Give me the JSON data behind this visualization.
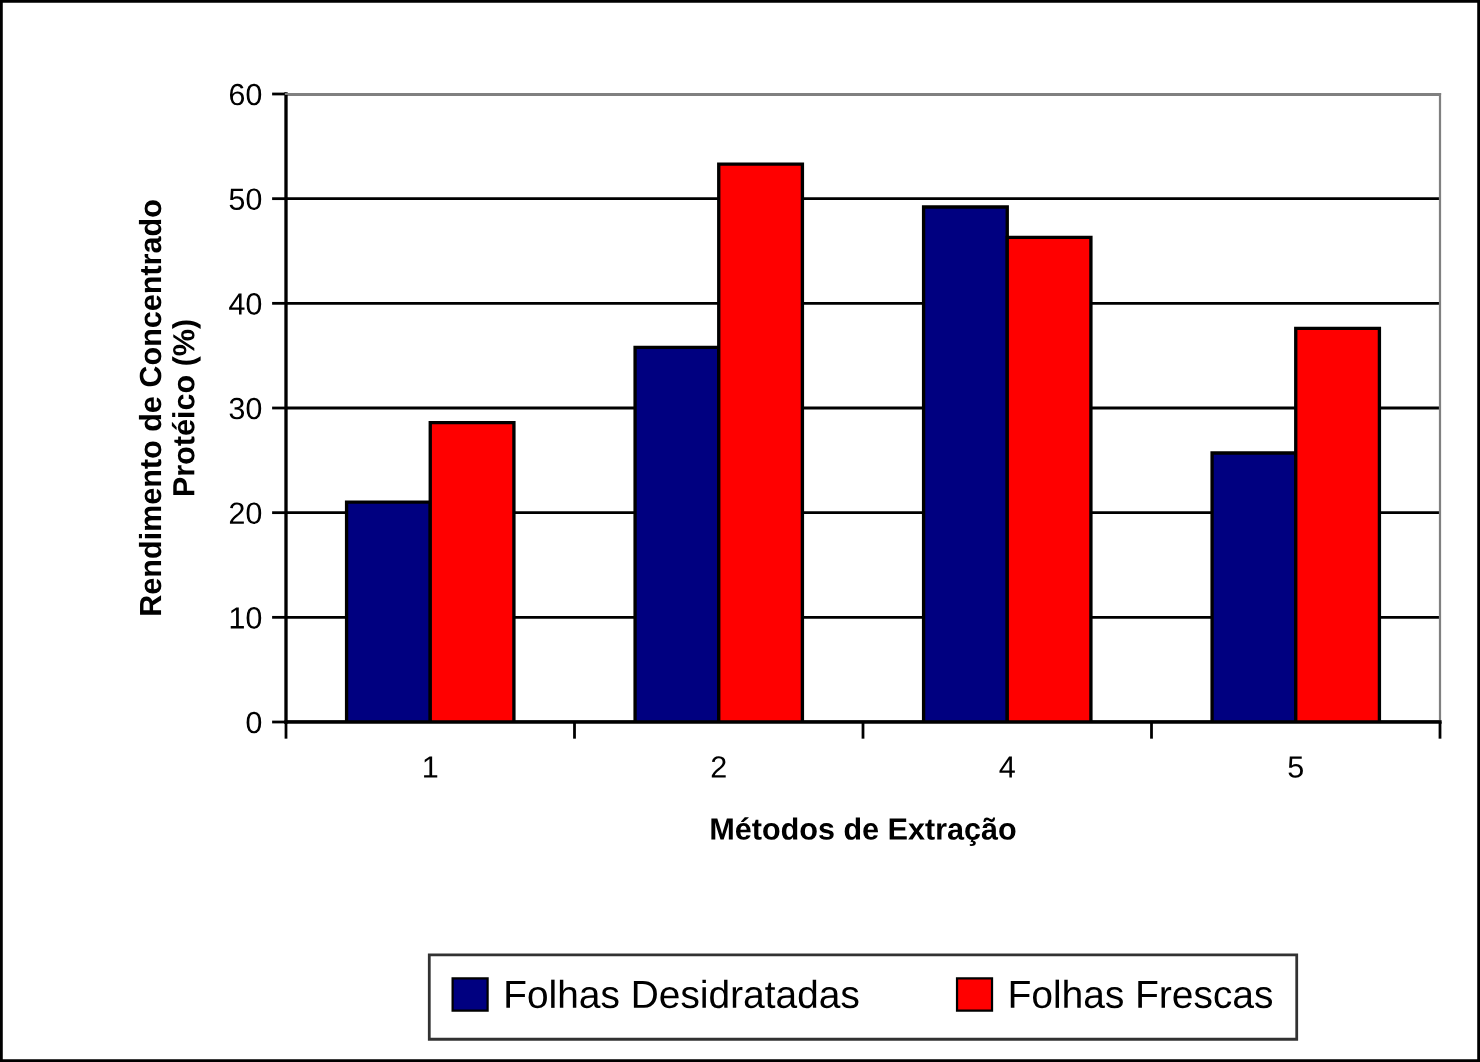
{
  "chart_data": {
    "type": "bar",
    "xlabel": "Métodos de Extração",
    "ylabel": "Rendimento de Concentrado\nProtéico (%)",
    "categories": [
      "1",
      "2",
      "4",
      "5"
    ],
    "series": [
      {
        "name": "Folhas Desidratadas",
        "color": "#000080",
        "values": [
          21.0,
          35.8,
          49.2,
          25.7
        ]
      },
      {
        "name": "Folhas Frescas",
        "color": "#ff0000",
        "values": [
          28.6,
          53.3,
          46.3,
          37.6
        ]
      }
    ],
    "ylim": [
      0,
      60
    ],
    "yticks": [
      0,
      10,
      20,
      30,
      40,
      50,
      60
    ],
    "grid": "y",
    "legend": "bottom"
  }
}
